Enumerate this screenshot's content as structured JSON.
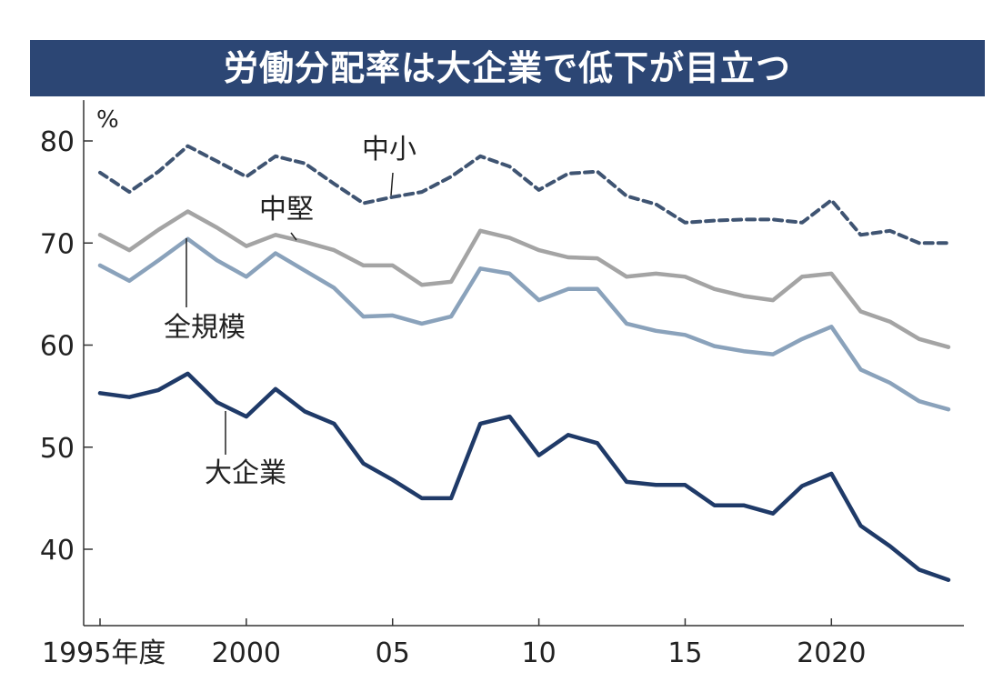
{
  "chart_data": {
    "type": "line",
    "title": "労働分配率は大企業で低下が目立つ",
    "ylabel": "%",
    "xlabel": "",
    "ylim": [
      33,
      84
    ],
    "xlim": [
      1995,
      2024
    ],
    "y_ticks": [
      40,
      50,
      60,
      70,
      80
    ],
    "x_ticks": [
      {
        "value": 1995,
        "label": "1995年度"
      },
      {
        "value": 2000,
        "label": "2000"
      },
      {
        "value": 2005,
        "label": "05"
      },
      {
        "value": 2010,
        "label": "10"
      },
      {
        "value": 2015,
        "label": "15"
      },
      {
        "value": 2020,
        "label": "2020"
      }
    ],
    "grid": false,
    "x": [
      1995,
      1996,
      1997,
      1998,
      1999,
      2000,
      2001,
      2002,
      2003,
      2004,
      2005,
      2006,
      2007,
      2008,
      2009,
      2010,
      2011,
      2012,
      2013,
      2014,
      2015,
      2016,
      2017,
      2018,
      2019,
      2020,
      2021,
      2022,
      2023,
      2024
    ],
    "series": [
      {
        "name": "中小",
        "color": "#3f5472",
        "dash": true,
        "values": [
          76.9,
          75.0,
          77.0,
          79.5,
          78.0,
          76.5,
          78.5,
          77.8,
          75.8,
          73.9,
          74.5,
          75.0,
          76.5,
          78.5,
          77.5,
          75.2,
          76.8,
          77.0,
          74.6,
          73.8,
          72.0,
          72.2,
          72.3,
          72.3,
          72.0,
          74.2,
          70.8,
          71.2,
          70.0,
          70.0
        ]
      },
      {
        "name": "中堅",
        "color": "#a4a4a4",
        "dash": false,
        "values": [
          70.8,
          69.3,
          71.3,
          73.1,
          71.5,
          69.7,
          70.8,
          70.1,
          69.3,
          67.8,
          67.8,
          65.9,
          66.2,
          71.2,
          70.5,
          69.3,
          68.6,
          68.5,
          66.7,
          67.0,
          66.7,
          65.5,
          64.8,
          64.4,
          66.7,
          67.0,
          63.3,
          62.3,
          60.6,
          59.8
        ]
      },
      {
        "name": "全規模",
        "color": "#8aa2bb",
        "dash": false,
        "values": [
          67.8,
          66.3,
          68.3,
          70.4,
          68.3,
          66.7,
          69.0,
          67.3,
          65.6,
          62.8,
          62.9,
          62.1,
          62.8,
          67.5,
          67.0,
          64.4,
          65.5,
          65.5,
          62.1,
          61.4,
          61.0,
          59.9,
          59.4,
          59.1,
          60.6,
          61.8,
          57.6,
          56.3,
          54.5,
          53.7
        ]
      },
      {
        "name": "大企業",
        "color": "#1f3a68",
        "dash": false,
        "values": [
          55.3,
          54.9,
          55.6,
          57.2,
          54.4,
          53.0,
          55.7,
          53.5,
          52.3,
          48.4,
          46.8,
          45.0,
          45.0,
          52.3,
          53.0,
          49.2,
          51.2,
          50.4,
          46.6,
          46.3,
          46.3,
          44.3,
          44.3,
          43.5,
          46.2,
          47.4,
          42.3,
          40.3,
          38.0,
          37.0
        ]
      }
    ]
  }
}
